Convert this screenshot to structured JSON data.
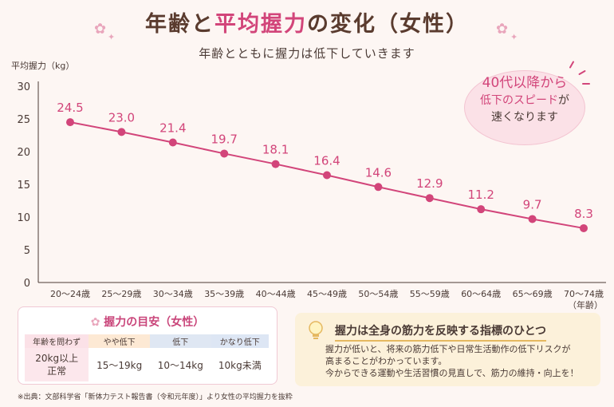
{
  "header": {
    "title_part1": "年齢と",
    "title_part2": "平均握力",
    "title_part3": "の変化（女性）",
    "subtitle": "年齢とともに握力は低下していきます"
  },
  "chart_data": {
    "type": "line",
    "title": "年齢と平均握力の変化（女性）",
    "ylabel": "平均握力（kg）",
    "xlabel": "（年齢）",
    "ylim": [
      0,
      30
    ],
    "yticks": [
      "0",
      "5",
      "10",
      "15",
      "20",
      "25",
      "30"
    ],
    "categories": [
      "20～24歳",
      "25～29歳",
      "30～34歳",
      "35～39歳",
      "40～44歳",
      "45～49歳",
      "50～54歳",
      "55～59歳",
      "60～64歳",
      "65～69歳",
      "70～74歳"
    ],
    "values": [
      24.5,
      23.0,
      21.4,
      19.7,
      18.1,
      16.4,
      14.6,
      12.9,
      11.2,
      9.7,
      8.3
    ],
    "labels": [
      "24.5",
      "23.0",
      "21.4",
      "19.7",
      "18.1",
      "16.4",
      "14.6",
      "12.9",
      "11.2",
      "9.7",
      "8.3"
    ],
    "grid": false,
    "color": "#d2457a"
  },
  "callout": {
    "line1": "40代以降から",
    "line2a": "低下のスピード",
    "line2b": "が",
    "line3": "速くなります"
  },
  "guide": {
    "title": "握力の目安（女性）",
    "headers": [
      "年齢を問わず",
      "やや低下",
      "低下",
      "かなり低下"
    ],
    "values": [
      "20kg以上",
      "正常",
      "15～19kg",
      "10～14kg",
      "10kg未満"
    ]
  },
  "info": {
    "heading": "握力は全身の筋力を反映する指標のひとつ",
    "line1": "握力が低いと、将来の筋力低下や日常生活動作の低下リスクが",
    "line2": "高まることがわかっています。",
    "line3": "今からできる運動や生活習慣の見直しで、筋力の維持・向上を！"
  },
  "source": "※出典：文部科学省「新体力テスト報告書（令和元年度）」より女性の平均握力を抜粋"
}
